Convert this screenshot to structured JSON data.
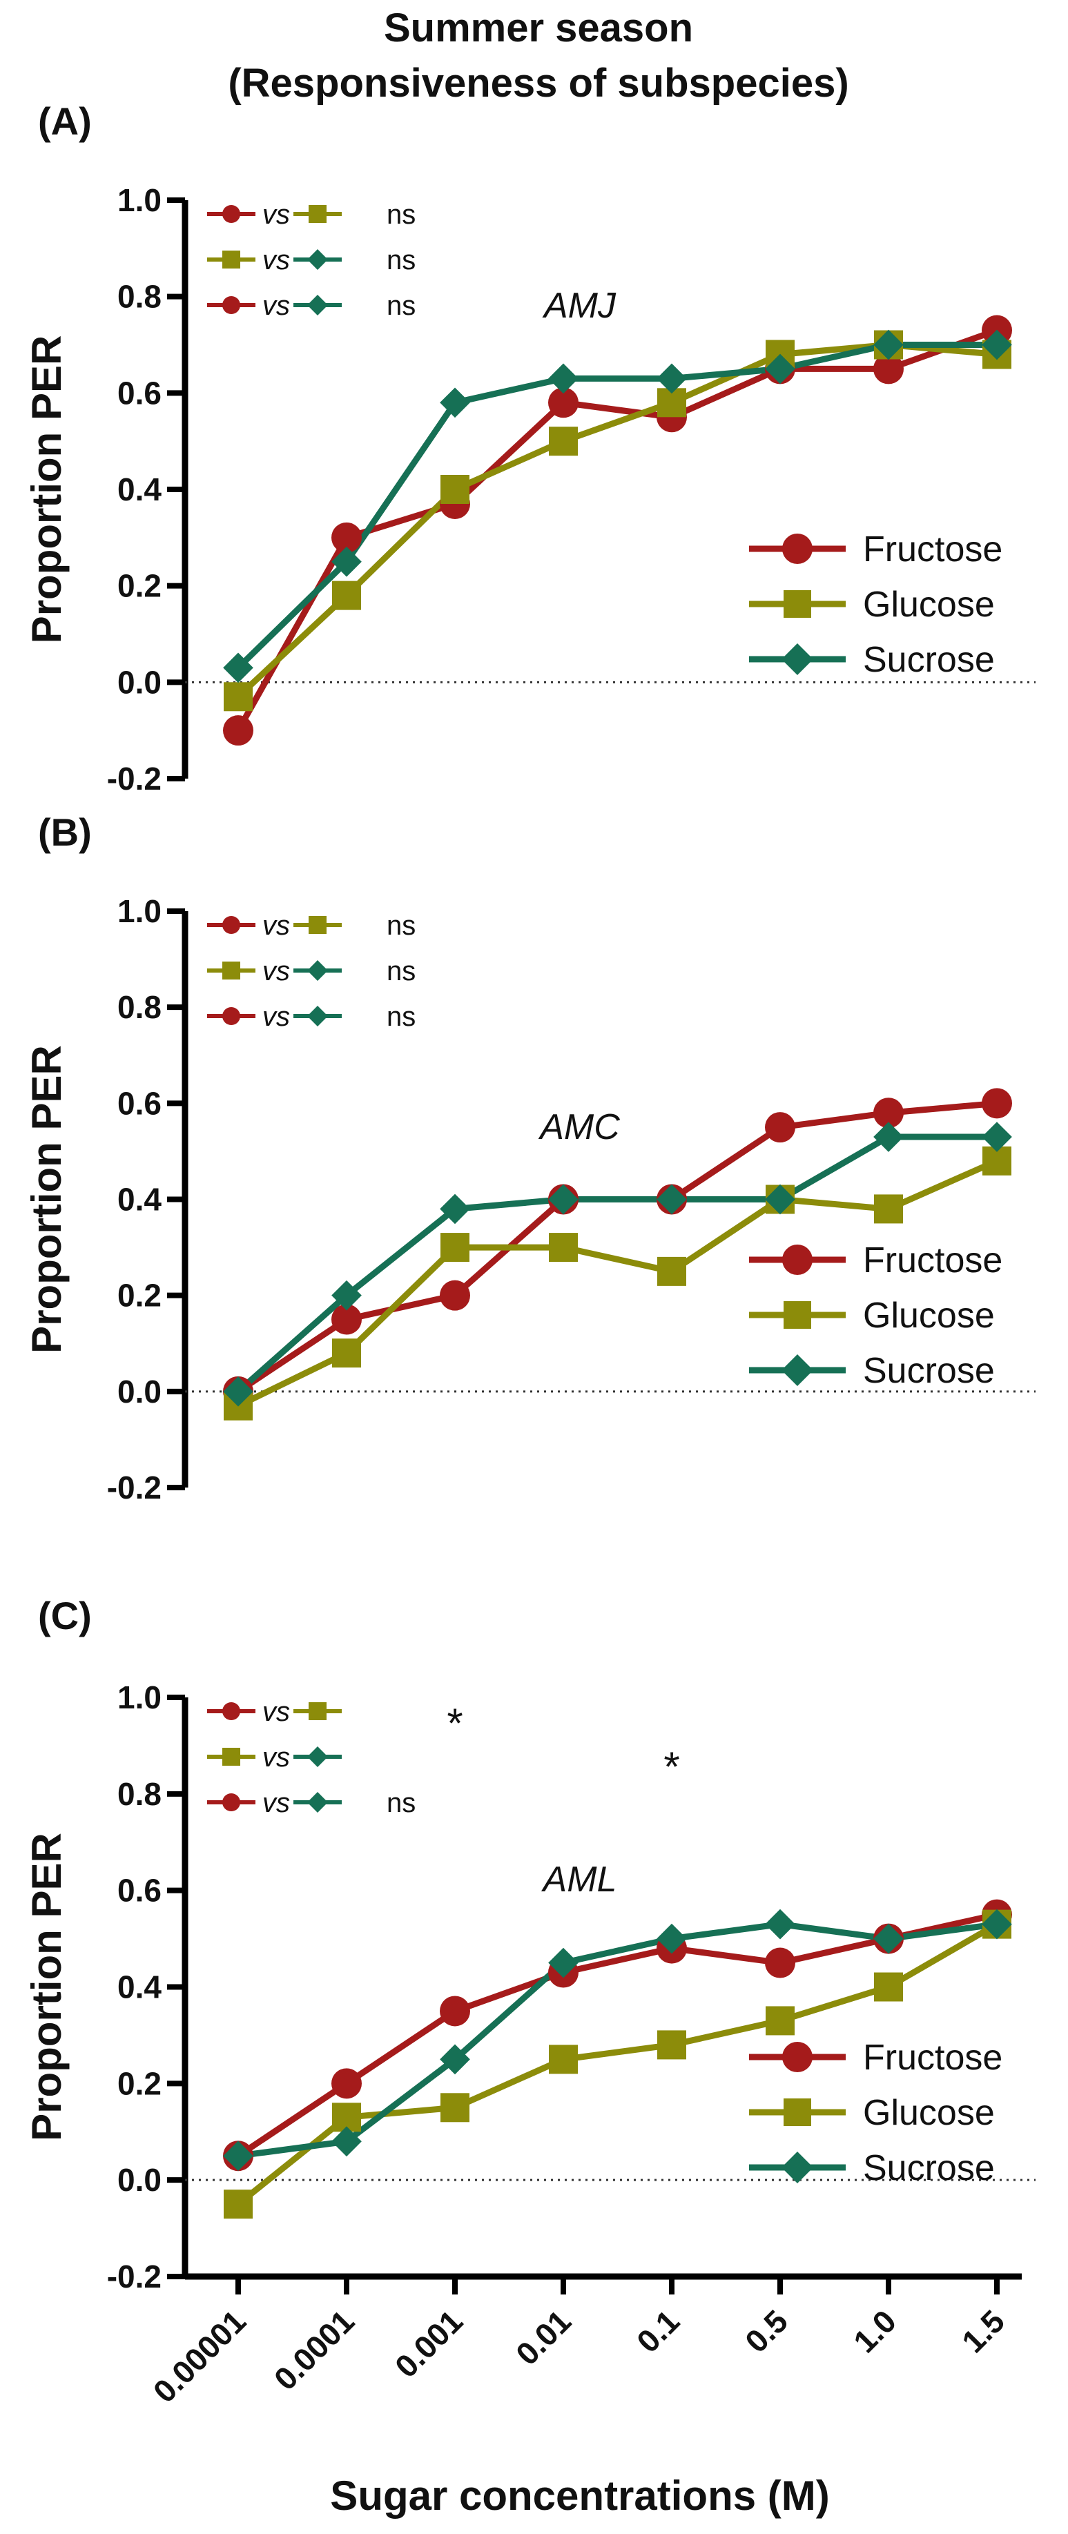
{
  "figure": {
    "title_line1": "Summer season",
    "title_line2": "(Responsiveness of subspecies)",
    "xlabel": "Sugar concentrations (M)",
    "vs_text": "vs"
  },
  "colors": {
    "fructose": "#A51B1B",
    "glucose": "#8C8C0A",
    "sucrose": "#167055",
    "axis": "#000000"
  },
  "chart_data": [
    {
      "type": "line",
      "panel": "(A)",
      "annotation": "AMJ",
      "ylabel": "Proportion PER",
      "xlabel": "Sugar concentrations (M)",
      "ylim": [
        -0.2,
        1.0
      ],
      "yticks": [
        "-0.2",
        "0.0",
        "0.2",
        "0.4",
        "0.6",
        "0.8",
        "1.0"
      ],
      "categories": [
        "0.00001",
        "0.0001",
        "0.001",
        "0.01",
        "0.1",
        "0.5",
        "1.0",
        "1.5"
      ],
      "series": [
        {
          "name": "Fructose",
          "marker": "circle",
          "values": [
            -0.1,
            0.3,
            0.37,
            0.58,
            0.55,
            0.65,
            0.65,
            0.73
          ]
        },
        {
          "name": "Glucose",
          "marker": "square",
          "values": [
            -0.03,
            0.18,
            0.4,
            0.5,
            0.58,
            0.68,
            0.7,
            0.68
          ]
        },
        {
          "name": "Sucrose",
          "marker": "diamond",
          "values": [
            0.03,
            0.25,
            0.58,
            0.63,
            0.63,
            0.65,
            0.7,
            0.7
          ]
        }
      ],
      "comparisons": [
        {
          "left": "Fructose",
          "right": "Glucose",
          "result": "ns"
        },
        {
          "left": "Glucose",
          "right": "Sucrose",
          "result": "ns"
        },
        {
          "left": "Fructose",
          "right": "Sucrose",
          "result": "ns"
        }
      ],
      "stars": [],
      "legend": [
        "Fructose",
        "Glucose",
        "Sucrose"
      ]
    },
    {
      "type": "line",
      "panel": "(B)",
      "annotation": "AMC",
      "ylabel": "Proportion PER",
      "xlabel": "Sugar concentrations (M)",
      "ylim": [
        -0.2,
        1.0
      ],
      "yticks": [
        "-0.2",
        "0.0",
        "0.2",
        "0.4",
        "0.6",
        "0.8",
        "1.0"
      ],
      "categories": [
        "0.00001",
        "0.0001",
        "0.001",
        "0.01",
        "0.1",
        "0.5",
        "1.0",
        "1.5"
      ],
      "series": [
        {
          "name": "Fructose",
          "marker": "circle",
          "values": [
            0.0,
            0.15,
            0.2,
            0.4,
            0.4,
            0.55,
            0.58,
            0.6
          ]
        },
        {
          "name": "Glucose",
          "marker": "square",
          "values": [
            -0.03,
            0.08,
            0.3,
            0.3,
            0.25,
            0.4,
            0.38,
            0.48
          ]
        },
        {
          "name": "Sucrose",
          "marker": "diamond",
          "values": [
            0.0,
            0.2,
            0.38,
            0.4,
            0.4,
            0.4,
            0.53,
            0.53
          ]
        }
      ],
      "comparisons": [
        {
          "left": "Fructose",
          "right": "Glucose",
          "result": "ns"
        },
        {
          "left": "Glucose",
          "right": "Sucrose",
          "result": "ns"
        },
        {
          "left": "Fructose",
          "right": "Sucrose",
          "result": "ns"
        }
      ],
      "stars": [],
      "legend": [
        "Fructose",
        "Glucose",
        "Sucrose"
      ]
    },
    {
      "type": "line",
      "panel": "(C)",
      "annotation": "AML",
      "ylabel": "Proportion PER",
      "xlabel": "Sugar concentrations (M)",
      "ylim": [
        -0.2,
        1.0
      ],
      "yticks": [
        "-0.2",
        "0.0",
        "0.2",
        "0.4",
        "0.6",
        "0.8",
        "1.0"
      ],
      "categories": [
        "0.00001",
        "0.0001",
        "0.001",
        "0.01",
        "0.1",
        "0.5",
        "1.0",
        "1.5"
      ],
      "series": [
        {
          "name": "Fructose",
          "marker": "circle",
          "values": [
            0.05,
            0.2,
            0.35,
            0.43,
            0.48,
            0.45,
            0.5,
            0.55
          ]
        },
        {
          "name": "Glucose",
          "marker": "square",
          "values": [
            -0.05,
            0.13,
            0.15,
            0.25,
            0.28,
            0.33,
            0.4,
            0.53
          ]
        },
        {
          "name": "Sucrose",
          "marker": "diamond",
          "values": [
            0.05,
            0.08,
            0.25,
            0.45,
            0.5,
            0.53,
            0.5,
            0.53
          ]
        }
      ],
      "comparisons": [
        {
          "left": "Fructose",
          "right": "Glucose",
          "result": ""
        },
        {
          "left": "Glucose",
          "right": "Sucrose",
          "result": ""
        },
        {
          "left": "Fructose",
          "right": "Sucrose",
          "result": "ns"
        }
      ],
      "stars": [
        {
          "category": "0.001",
          "value": 0.96,
          "text": "*"
        },
        {
          "category": "0.1",
          "value": 0.87,
          "text": "*"
        }
      ],
      "legend": [
        "Fructose",
        "Glucose",
        "Sucrose"
      ]
    }
  ]
}
